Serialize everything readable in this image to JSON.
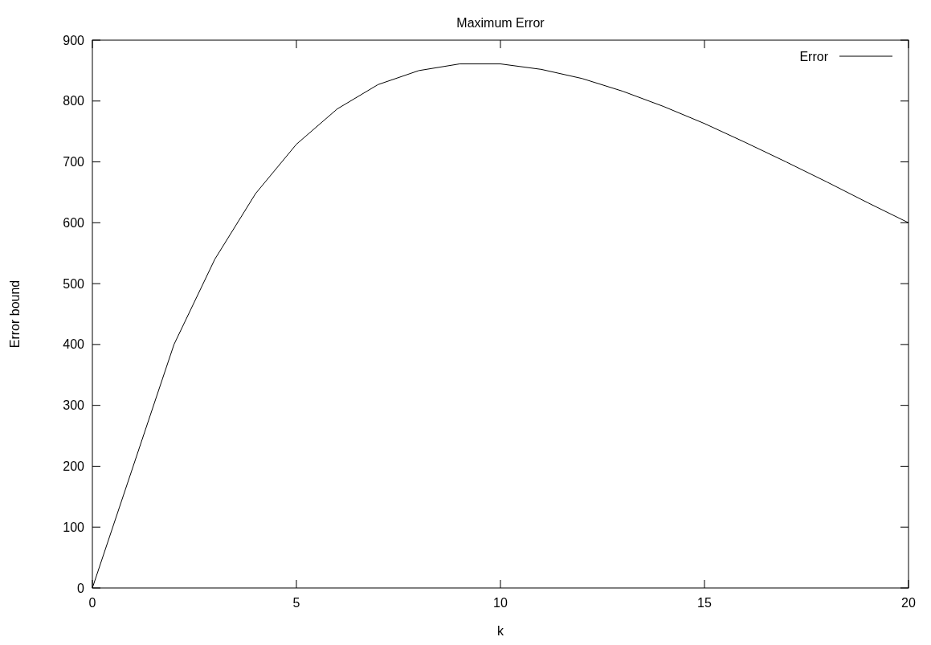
{
  "chart_data": {
    "type": "line",
    "title": "Maximum Error",
    "xlabel": "k",
    "ylabel": "Error bound",
    "x": [
      0,
      2,
      3,
      4,
      5,
      6,
      7,
      8,
      9,
      10,
      11,
      12,
      13,
      14,
      15,
      16,
      17,
      18,
      19,
      20
    ],
    "series": [
      {
        "name": "Error",
        "color": "#000000",
        "values": [
          0,
          400,
          540,
          648,
          729,
          787,
          827,
          850,
          861,
          861,
          852,
          837,
          816,
          791,
          763,
          732,
          700,
          667,
          633,
          600
        ]
      }
    ],
    "xlim": [
      0,
      20
    ],
    "xticks": [
      0,
      5,
      10,
      15,
      20
    ],
    "ylim": [
      0,
      900
    ],
    "yticks": [
      0,
      100,
      200,
      300,
      400,
      500,
      600,
      700,
      800,
      900
    ],
    "legend": "top right",
    "grid": false,
    "marker": "none",
    "line_style": "solid"
  }
}
